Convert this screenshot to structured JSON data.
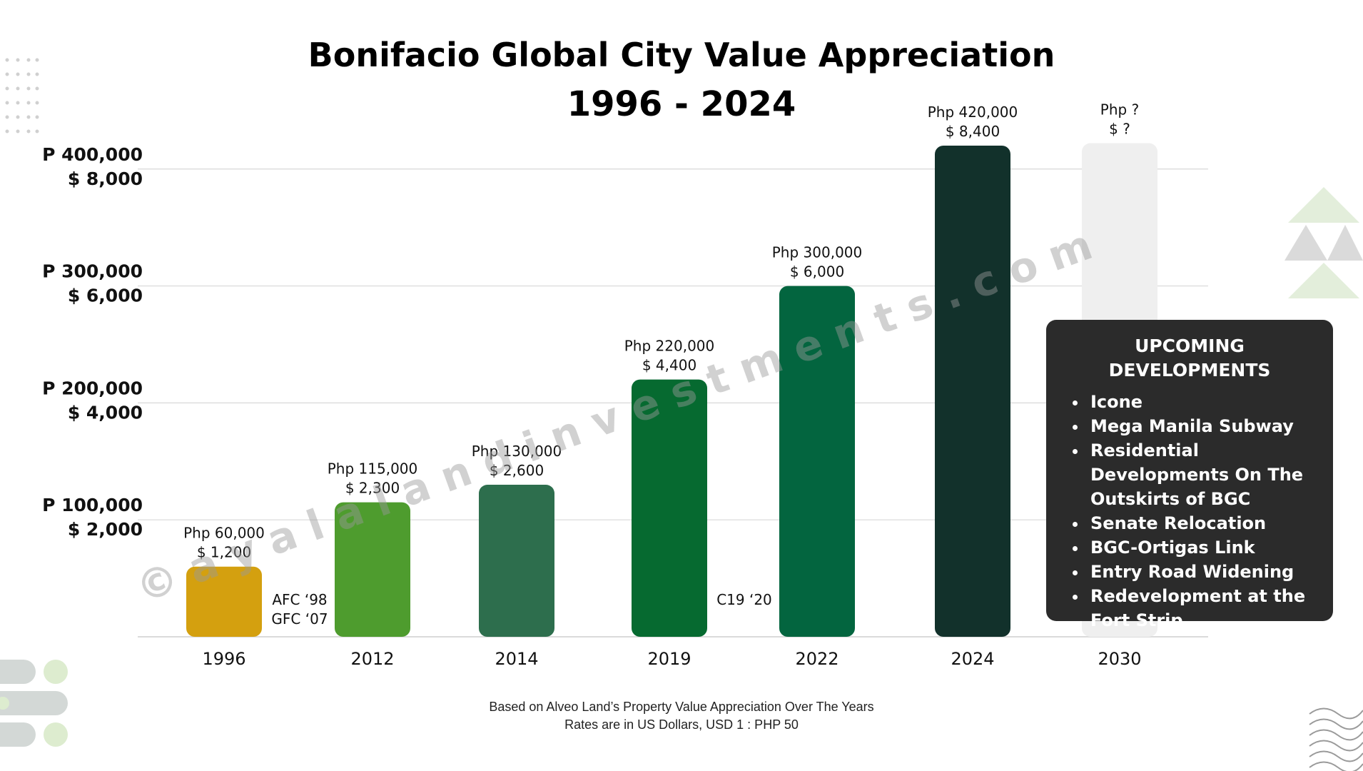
{
  "chart_data": {
    "type": "bar",
    "title": "Bonifacio Global City Value Appreciation",
    "subtitle": "1996 - 2024",
    "categories": [
      "1996",
      "2012",
      "2014",
      "2019",
      "2022",
      "2024",
      "2030"
    ],
    "values_php": [
      60000,
      115000,
      130000,
      220000,
      300000,
      420000,
      null
    ],
    "values_usd": [
      1200,
      2300,
      2600,
      4400,
      6000,
      8400,
      null
    ],
    "value_labels_php": [
      "Php 60,000",
      "Php 115,000",
      "Php 130,000",
      "Php 220,000",
      "Php 300,000",
      "Php 420,000",
      "Php ?"
    ],
    "value_labels_usd": [
      "$ 1,200",
      "$ 2,300",
      "$ 2,600",
      "$ 4,400",
      "$ 6,000",
      "$ 8,400",
      "$ ?"
    ],
    "bar_colors": [
      "#D4A00F",
      "#4E9C2E",
      "#2D6E4D",
      "#066A30",
      "#03653F",
      "#12312B",
      "#EFEFEF"
    ],
    "ylim_php": [
      0,
      420000
    ],
    "yticks_php": [
      100000,
      200000,
      300000,
      400000
    ],
    "ytick_labels_php": [
      "P 100,000",
      "P 200,000",
      "P 300,000",
      "P 400,000"
    ],
    "ytick_labels_usd": [
      "$ 2,000",
      "$ 4,000",
      "$ 6,000",
      "$ 8,000"
    ],
    "grid": true,
    "annotations": [
      {
        "text": "AFC ‘98",
        "between": [
          "1996",
          "2012"
        ]
      },
      {
        "text": "GFC ‘07",
        "between": [
          "1996",
          "2012"
        ]
      },
      {
        "text": "C19 ‘20",
        "between": [
          "2019",
          "2022"
        ]
      }
    ]
  },
  "watermark": "© a y a l a l a n d i n v e s t m e n t s . c o m",
  "panel": {
    "title": "UPCOMING DEVELOPMENTS",
    "items": [
      "Icone",
      "Mega Manila Subway",
      "Residential Developments On The Outskirts of BGC",
      "Senate Relocation",
      "BGC-Ortigas Link",
      "Entry Road Widening",
      "Redevelopment at the Fort Strip"
    ]
  },
  "footnotes": [
    "Based on Alveo Land’s Property Value Appreciation Over The Years",
    "Rates are in US Dollars, USD 1 : PHP 50"
  ]
}
